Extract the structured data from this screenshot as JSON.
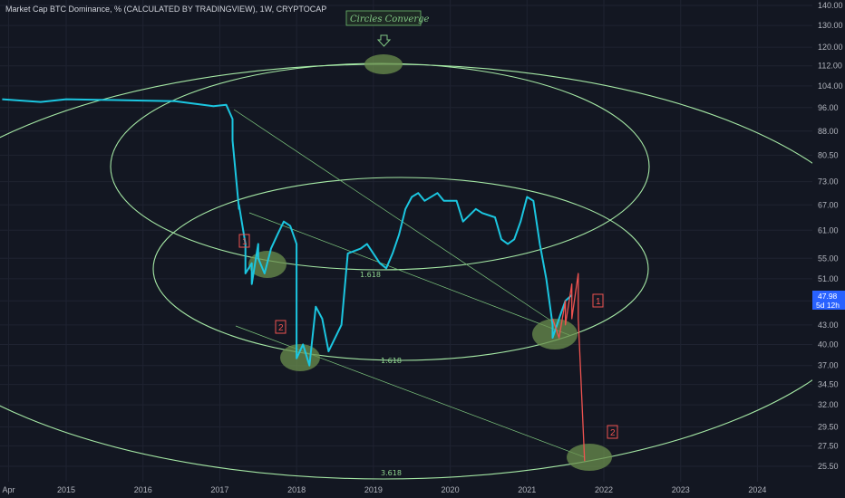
{
  "header": {
    "title": "Market Cap BTC Dominance, % (CALCULATED BY TRADINGVIEW), 1W, CRYPTOCAP"
  },
  "price_badge": {
    "value": "47.98",
    "countdown": "5d 12h",
    "color": "#2962ff"
  },
  "annotations": {
    "circles_converge": "Circles Converge",
    "fib_labels": [
      "1.618",
      "1.618",
      "3.618"
    ],
    "markers": [
      "1",
      "2",
      "1",
      "2"
    ]
  },
  "colors": {
    "background": "#131722",
    "dominance_line": "#1bc6e0",
    "projection_line": "#ef5350",
    "circles": "#a5e8a5",
    "highlight_fill": "#6b8f4e",
    "marker_color": "#ef5350"
  },
  "chart_data": {
    "type": "line",
    "y_axis_ticks": [
      "140.00",
      "130.00",
      "120.00",
      "112.00",
      "104.00",
      "96.00",
      "88.00",
      "80.50",
      "73.00",
      "67.00",
      "61.00",
      "55.00",
      "51.00",
      "47.00",
      "43.00",
      "40.00",
      "37.00",
      "34.50",
      "32.00",
      "29.50",
      "27.50",
      "25.50"
    ],
    "x_axis_ticks": [
      "Apr",
      "2015",
      "2016",
      "2017",
      "2018",
      "2019",
      "2020",
      "2021",
      "2022",
      "2023",
      "2024"
    ],
    "log_scale": true,
    "grid": true,
    "series": [
      {
        "style": "cyan-line",
        "x": [
          "2014-03",
          "2014-06",
          "2014-09",
          "2015-01",
          "2015-06",
          "2016-01",
          "2016-06",
          "2016-12",
          "2017-02",
          "2017-03",
          "2017-03",
          "2017-04",
          "2017-04",
          "2017-05",
          "2017-05",
          "2017-06",
          "2017-06",
          "2017-07",
          "2017-07",
          "2017-08",
          "2017-09",
          "2017-10",
          "2017-11",
          "2017-12",
          "2018-01",
          "2018-01",
          "2018-02",
          "2018-03",
          "2018-04",
          "2018-05",
          "2018-06",
          "2018-08",
          "2018-09",
          "2018-11",
          "2018-12",
          "2019-02",
          "2019-03",
          "2019-04",
          "2019-05",
          "2019-06",
          "2019-07",
          "2019-08",
          "2019-09",
          "2019-11",
          "2019-12",
          "2020-02",
          "2020-03",
          "2020-05",
          "2020-06",
          "2020-08",
          "2020-09",
          "2020-10",
          "2020-11",
          "2020-12",
          "2021-01",
          "2021-02",
          "2021-03",
          "2021-04",
          "2021-05",
          "2021-05",
          "2021-06",
          "2021-07",
          "2021-08"
        ],
        "y": [
          99,
          98.5,
          98,
          99,
          98.8,
          98.5,
          98.3,
          96.5,
          97,
          92,
          85,
          66,
          67,
          58,
          52,
          54,
          50,
          58,
          55,
          52,
          57,
          60,
          63,
          62,
          58,
          38,
          40,
          37,
          46,
          44,
          39,
          43,
          56,
          57,
          58,
          54,
          53,
          56,
          60,
          66,
          69,
          70,
          68,
          70,
          68,
          68,
          63,
          66,
          65,
          64,
          59,
          58,
          59,
          63,
          69,
          68,
          58,
          51,
          43,
          41,
          44,
          47,
          48
        ]
      },
      {
        "style": "red-projection",
        "x": [
          "2021-05",
          "2021-06",
          "2021-07",
          "2021-07",
          "2021-08",
          "2021-08",
          "2021-09",
          "2021-09",
          "2021-10"
        ],
        "y": [
          44,
          41,
          47,
          43,
          50,
          44,
          52,
          44,
          26
        ]
      }
    ]
  }
}
